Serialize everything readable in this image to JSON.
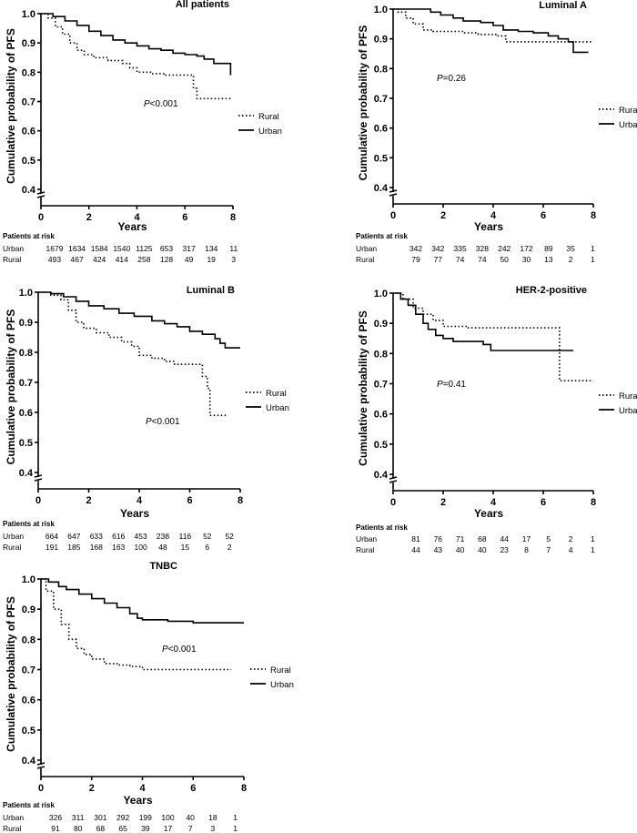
{
  "chart_data": [
    {
      "type": "line",
      "title": "All patients",
      "xlabel": "Years",
      "ylabel": "Cumulative probability of PFS",
      "xlim": [
        0,
        8
      ],
      "ylim": [
        0.4,
        1.0
      ],
      "x_ticks": [
        "0",
        "2",
        "4",
        "6",
        "8"
      ],
      "y_ticks": [
        "0.4",
        "0.5",
        "0.6",
        "0.7",
        "0.8",
        "0.9",
        "1.0"
      ],
      "p_value": "P<0.001",
      "series": [
        {
          "name": "Rural",
          "style": "dotted",
          "points": [
            [
              0,
              1.0
            ],
            [
              0.3,
              0.985
            ],
            [
              0.6,
              0.955
            ],
            [
              0.9,
              0.93
            ],
            [
              1.2,
              0.9
            ],
            [
              1.5,
              0.875
            ],
            [
              1.8,
              0.86
            ],
            [
              2.2,
              0.85
            ],
            [
              2.8,
              0.84
            ],
            [
              3.4,
              0.83
            ],
            [
              3.7,
              0.815
            ],
            [
              4.0,
              0.8
            ],
            [
              4.6,
              0.795
            ],
            [
              5.2,
              0.79
            ],
            [
              5.8,
              0.79
            ],
            [
              6.2,
              0.79
            ],
            [
              6.35,
              0.745
            ],
            [
              6.5,
              0.71
            ],
            [
              7.9,
              0.71
            ]
          ]
        },
        {
          "name": "Urban",
          "style": "solid",
          "points": [
            [
              0,
              1.0
            ],
            [
              0.5,
              0.99
            ],
            [
              1.0,
              0.975
            ],
            [
              1.5,
              0.96
            ],
            [
              2.0,
              0.94
            ],
            [
              2.5,
              0.925
            ],
            [
              3.0,
              0.91
            ],
            [
              3.5,
              0.9
            ],
            [
              4.0,
              0.89
            ],
            [
              4.5,
              0.88
            ],
            [
              5.0,
              0.875
            ],
            [
              5.5,
              0.865
            ],
            [
              6.0,
              0.86
            ],
            [
              6.5,
              0.855
            ],
            [
              6.8,
              0.845
            ],
            [
              7.2,
              0.83
            ],
            [
              7.8,
              0.83
            ],
            [
              7.9,
              0.79
            ]
          ]
        }
      ],
      "risk_table": {
        "title": "Patients at risk",
        "rows": [
          {
            "label": "Urban",
            "values": [
              "1679",
              "1634",
              "1584",
              "1540",
              "1125",
              "653",
              "317",
              "134",
              "11"
            ]
          },
          {
            "label": "Rural",
            "values": [
              "493",
              "467",
              "424",
              "414",
              "258",
              "128",
              "49",
              "19",
              "3"
            ]
          }
        ]
      },
      "legend": [
        "Rural",
        "Urban"
      ]
    },
    {
      "type": "line",
      "title": "Luminal A",
      "xlabel": "Years",
      "ylabel": "Cumulative probability of PFS",
      "xlim": [
        0,
        8
      ],
      "ylim": [
        0.4,
        1.0
      ],
      "x_ticks": [
        "0",
        "2",
        "4",
        "6",
        "8"
      ],
      "y_ticks": [
        "0.4",
        "0.5",
        "0.6",
        "0.7",
        "0.8",
        "0.9",
        "1.0"
      ],
      "p_value": "P=0.26",
      "series": [
        {
          "name": "Rural",
          "style": "dotted",
          "points": [
            [
              0,
              1.0
            ],
            [
              0.2,
              0.99
            ],
            [
              0.5,
              0.97
            ],
            [
              0.8,
              0.95
            ],
            [
              1.2,
              0.93
            ],
            [
              1.6,
              0.925
            ],
            [
              2.2,
              0.925
            ],
            [
              2.8,
              0.92
            ],
            [
              3.4,
              0.915
            ],
            [
              4.1,
              0.91
            ],
            [
              4.5,
              0.89
            ],
            [
              5.5,
              0.89
            ],
            [
              6.5,
              0.89
            ],
            [
              7.6,
              0.89
            ],
            [
              8.0,
              0.89
            ]
          ]
        },
        {
          "name": "Urban",
          "style": "solid",
          "points": [
            [
              0,
              1.0
            ],
            [
              1.2,
              1.0
            ],
            [
              1.5,
              0.99
            ],
            [
              1.9,
              0.98
            ],
            [
              2.4,
              0.97
            ],
            [
              2.8,
              0.96
            ],
            [
              3.5,
              0.955
            ],
            [
              4.0,
              0.945
            ],
            [
              4.4,
              0.93
            ],
            [
              5.0,
              0.925
            ],
            [
              5.6,
              0.92
            ],
            [
              6.2,
              0.91
            ],
            [
              6.6,
              0.9
            ],
            [
              7.0,
              0.89
            ],
            [
              7.2,
              0.855
            ],
            [
              7.8,
              0.855
            ]
          ]
        }
      ],
      "risk_table": {
        "title": "Patients at risk",
        "rows": [
          {
            "label": "Urban",
            "values": [
              "342",
              "342",
              "335",
              "328",
              "242",
              "172",
              "89",
              "35",
              "1"
            ]
          },
          {
            "label": "Rural",
            "values": [
              "79",
              "77",
              "74",
              "74",
              "50",
              "30",
              "13",
              "2",
              "1"
            ]
          }
        ]
      },
      "legend": [
        "Rural",
        "Urban"
      ]
    },
    {
      "type": "line",
      "title": "Luminal B",
      "xlabel": "Years",
      "ylabel": "Cumulative probability of PFS",
      "xlim": [
        0,
        8
      ],
      "ylim": [
        0.4,
        1.0
      ],
      "x_ticks": [
        "0",
        "2",
        "4",
        "6",
        "8"
      ],
      "y_ticks": [
        "0.4",
        "0.5",
        "0.6",
        "0.7",
        "0.8",
        "0.9",
        "1.0"
      ],
      "p_value": "P<0.001",
      "series": [
        {
          "name": "Rural",
          "style": "dotted",
          "points": [
            [
              0,
              1.0
            ],
            [
              0.5,
              0.99
            ],
            [
              0.9,
              0.975
            ],
            [
              1.2,
              0.94
            ],
            [
              1.5,
              0.9
            ],
            [
              1.8,
              0.88
            ],
            [
              2.3,
              0.865
            ],
            [
              2.8,
              0.85
            ],
            [
              3.3,
              0.835
            ],
            [
              3.7,
              0.82
            ],
            [
              4.0,
              0.79
            ],
            [
              4.5,
              0.78
            ],
            [
              5.0,
              0.77
            ],
            [
              5.4,
              0.76
            ],
            [
              6.0,
              0.76
            ],
            [
              6.4,
              0.76
            ],
            [
              6.5,
              0.72
            ],
            [
              6.7,
              0.68
            ],
            [
              6.8,
              0.59
            ],
            [
              7.5,
              0.59
            ]
          ]
        },
        {
          "name": "Urban",
          "style": "solid",
          "points": [
            [
              0,
              1.0
            ],
            [
              0.5,
              0.995
            ],
            [
              1.0,
              0.985
            ],
            [
              1.5,
              0.97
            ],
            [
              2.0,
              0.955
            ],
            [
              2.6,
              0.945
            ],
            [
              3.2,
              0.93
            ],
            [
              3.8,
              0.92
            ],
            [
              4.5,
              0.905
            ],
            [
              5.0,
              0.895
            ],
            [
              5.5,
              0.885
            ],
            [
              6.0,
              0.87
            ],
            [
              6.5,
              0.86
            ],
            [
              7.0,
              0.845
            ],
            [
              7.2,
              0.83
            ],
            [
              7.4,
              0.815
            ],
            [
              8.0,
              0.815
            ]
          ]
        }
      ],
      "risk_table": {
        "title": "Patients at risk",
        "rows": [
          {
            "label": "Urban",
            "values": [
              "664",
              "647",
              "633",
              "616",
              "453",
              "238",
              "116",
              "52",
              "52"
            ]
          },
          {
            "label": "Rural",
            "values": [
              "191",
              "185",
              "168",
              "163",
              "100",
              "48",
              "15",
              "6",
              "2"
            ]
          }
        ]
      },
      "legend": [
        "Rural",
        "Urban"
      ]
    },
    {
      "type": "line",
      "title": "HER-2-positive",
      "xlabel": "Years",
      "ylabel": "Cumulative probability of PFS",
      "xlim": [
        0,
        8
      ],
      "ylim": [
        0.4,
        1.0
      ],
      "x_ticks": [
        "0",
        "2",
        "4",
        "6",
        "8"
      ],
      "y_ticks": [
        "0.4",
        "0.5",
        "0.6",
        "0.7",
        "0.8",
        "0.9",
        "1.0"
      ],
      "p_value": "P=0.41",
      "series": [
        {
          "name": "Rural",
          "style": "dotted",
          "points": [
            [
              0,
              1.0
            ],
            [
              0.4,
              0.98
            ],
            [
              0.8,
              0.95
            ],
            [
              1.2,
              0.93
            ],
            [
              1.6,
              0.91
            ],
            [
              2.0,
              0.89
            ],
            [
              3.0,
              0.885
            ],
            [
              4.5,
              0.885
            ],
            [
              6.0,
              0.885
            ],
            [
              6.6,
              0.885
            ],
            [
              6.65,
              0.71
            ],
            [
              8.0,
              0.71
            ]
          ]
        },
        {
          "name": "Urban",
          "style": "solid",
          "points": [
            [
              0,
              1.0
            ],
            [
              0.3,
              0.98
            ],
            [
              0.6,
              0.96
            ],
            [
              0.9,
              0.93
            ],
            [
              1.2,
              0.9
            ],
            [
              1.4,
              0.88
            ],
            [
              1.7,
              0.86
            ],
            [
              2.0,
              0.85
            ],
            [
              2.4,
              0.84
            ],
            [
              3.0,
              0.84
            ],
            [
              3.6,
              0.83
            ],
            [
              3.9,
              0.81
            ],
            [
              5.0,
              0.81
            ],
            [
              6.5,
              0.81
            ],
            [
              7.2,
              0.81
            ]
          ]
        }
      ],
      "risk_table": {
        "title": "Patients at risk",
        "rows": [
          {
            "label": "Urban",
            "values": [
              "81",
              "76",
              "71",
              "68",
              "44",
              "17",
              "5",
              "2",
              "1"
            ]
          },
          {
            "label": "Rural",
            "values": [
              "44",
              "43",
              "40",
              "40",
              "23",
              "8",
              "7",
              "4",
              "1"
            ]
          }
        ]
      },
      "legend": [
        "Rural",
        "Urban"
      ]
    },
    {
      "type": "line",
      "title": "TNBC",
      "xlabel": "Years",
      "ylabel": "Cumulative probability of PFS",
      "xlim": [
        0,
        8
      ],
      "ylim": [
        0.4,
        1.0
      ],
      "x_ticks": [
        "0",
        "2",
        "4",
        "6",
        "8"
      ],
      "y_ticks": [
        "0.4",
        "0.5",
        "0.6",
        "0.7",
        "0.8",
        "0.9",
        "1.0"
      ],
      "p_value": "P<0.001",
      "series": [
        {
          "name": "Rural",
          "style": "dotted",
          "points": [
            [
              0,
              1.0
            ],
            [
              0.2,
              0.96
            ],
            [
              0.5,
              0.9
            ],
            [
              0.8,
              0.85
            ],
            [
              1.1,
              0.8
            ],
            [
              1.4,
              0.77
            ],
            [
              1.7,
              0.75
            ],
            [
              2.0,
              0.735
            ],
            [
              2.5,
              0.72
            ],
            [
              3.0,
              0.715
            ],
            [
              3.5,
              0.71
            ],
            [
              4.0,
              0.7
            ],
            [
              5.0,
              0.7
            ],
            [
              6.0,
              0.7
            ],
            [
              7.5,
              0.7
            ]
          ]
        },
        {
          "name": "Urban",
          "style": "solid",
          "points": [
            [
              0,
              1.0
            ],
            [
              0.3,
              0.99
            ],
            [
              0.7,
              0.975
            ],
            [
              1.0,
              0.965
            ],
            [
              1.5,
              0.95
            ],
            [
              2.0,
              0.935
            ],
            [
              2.5,
              0.92
            ],
            [
              3.0,
              0.905
            ],
            [
              3.5,
              0.885
            ],
            [
              3.8,
              0.87
            ],
            [
              4.0,
              0.865
            ],
            [
              5.0,
              0.86
            ],
            [
              6.0,
              0.855
            ],
            [
              7.0,
              0.855
            ],
            [
              8.0,
              0.855
            ]
          ]
        }
      ],
      "risk_table": {
        "title": "Patients at risk",
        "rows": [
          {
            "label": "Urban",
            "values": [
              "326",
              "311",
              "301",
              "292",
              "199",
              "100",
              "40",
              "18",
              "1"
            ]
          },
          {
            "label": "Rural",
            "values": [
              "91",
              "80",
              "68",
              "65",
              "39",
              "17",
              "7",
              "3",
              "1"
            ]
          }
        ]
      },
      "legend": [
        "Rural",
        "Urban"
      ]
    }
  ]
}
